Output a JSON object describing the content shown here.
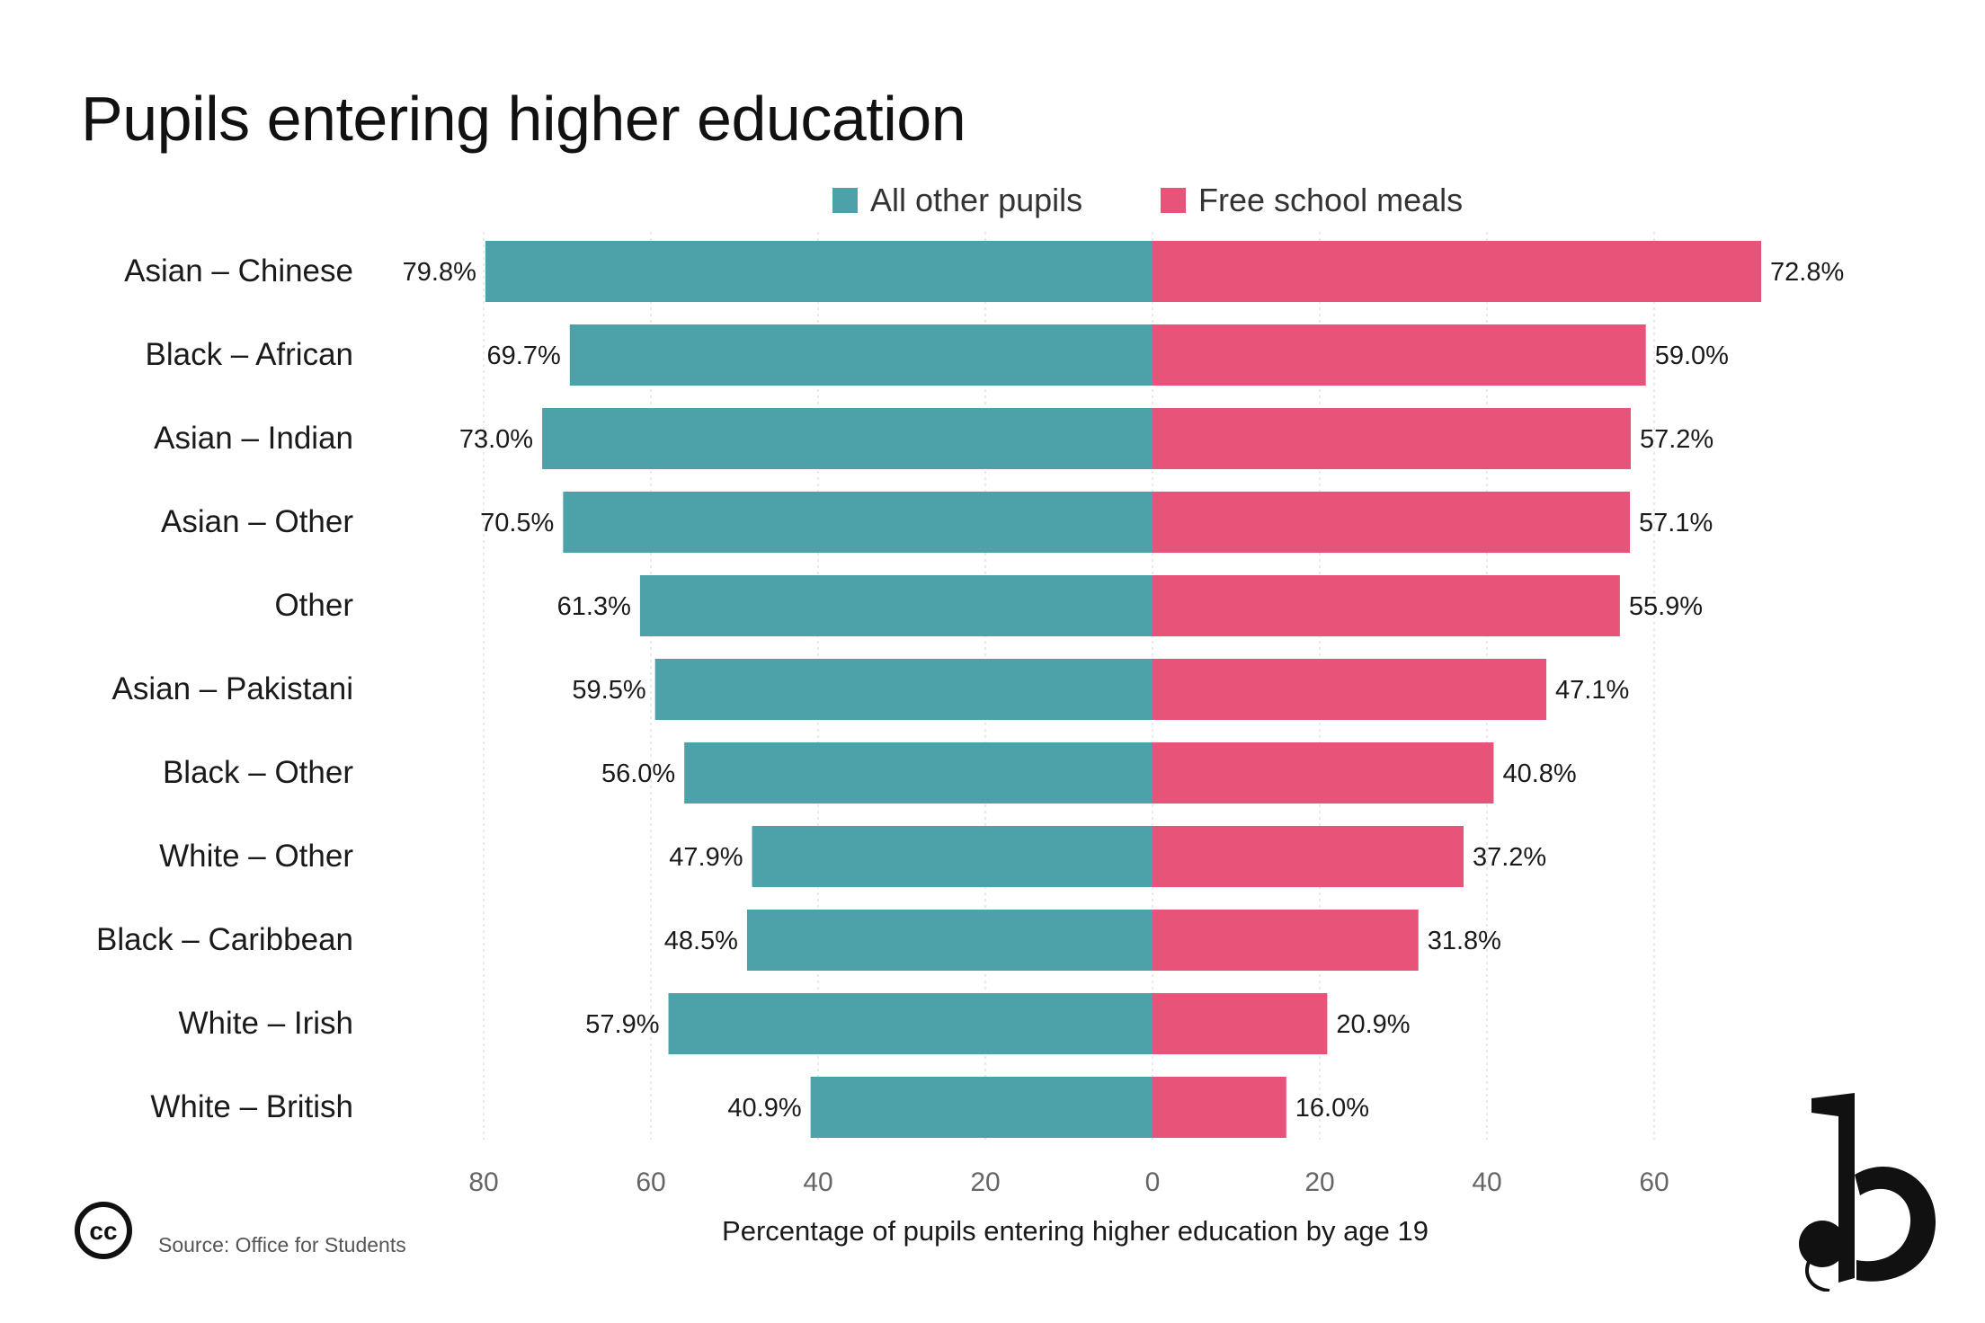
{
  "title": "Pupils entering higher education",
  "legend": {
    "other_label": "All other pupils",
    "fsm_label": "Free school meals"
  },
  "source": "Source: Office for Students",
  "colors": {
    "other": "#4da1a9",
    "fsm": "#e85379",
    "grid": "#e3e3e3",
    "tick": "#666666"
  },
  "icons": {
    "license": "creative-commons-icon",
    "brand": "b-logo-icon"
  },
  "chart_data": {
    "type": "bar",
    "orientation": "horizontal-diverging",
    "title": "Pupils entering higher education",
    "xlabel": "Percentage of pupils entering higher education by age 19",
    "xlim": [
      -80,
      75
    ],
    "ticks": [
      {
        "value": -80,
        "label": "80"
      },
      {
        "value": -60,
        "label": "60"
      },
      {
        "value": -40,
        "label": "40"
      },
      {
        "value": -20,
        "label": "20"
      },
      {
        "value": 0,
        "label": "0"
      },
      {
        "value": 20,
        "label": "20"
      },
      {
        "value": 40,
        "label": "40"
      },
      {
        "value": 60,
        "label": "60"
      }
    ],
    "grid": true,
    "legend_position": "top",
    "categories": [
      "Asian – Chinese",
      "Black – African",
      "Asian – Indian",
      "Asian – Other",
      "Other",
      "Asian – Pakistani",
      "Black – Other",
      "White – Other",
      "Black – Caribbean",
      "White – Irish",
      "White – British"
    ],
    "series": [
      {
        "name": "All other pupils",
        "side": "left",
        "values": [
          79.8,
          69.7,
          73.0,
          70.5,
          61.3,
          59.5,
          56.0,
          47.9,
          48.5,
          57.9,
          40.9
        ],
        "labels": [
          "79.8%",
          "69.7%",
          "73.0%",
          "70.5%",
          "61.3%",
          "59.5%",
          "56.0%",
          "47.9%",
          "48.5%",
          "57.9%",
          "40.9%"
        ]
      },
      {
        "name": "Free school meals",
        "side": "right",
        "values": [
          72.8,
          59.0,
          57.2,
          57.1,
          55.9,
          47.1,
          40.8,
          37.2,
          31.8,
          20.9,
          16.0
        ],
        "labels": [
          "72.8%",
          "59.0%",
          "57.2%",
          "57.1%",
          "55.9%",
          "47.1%",
          "40.8%",
          "37.2%",
          "31.8%",
          "20.9%",
          "16.0%"
        ]
      }
    ]
  }
}
